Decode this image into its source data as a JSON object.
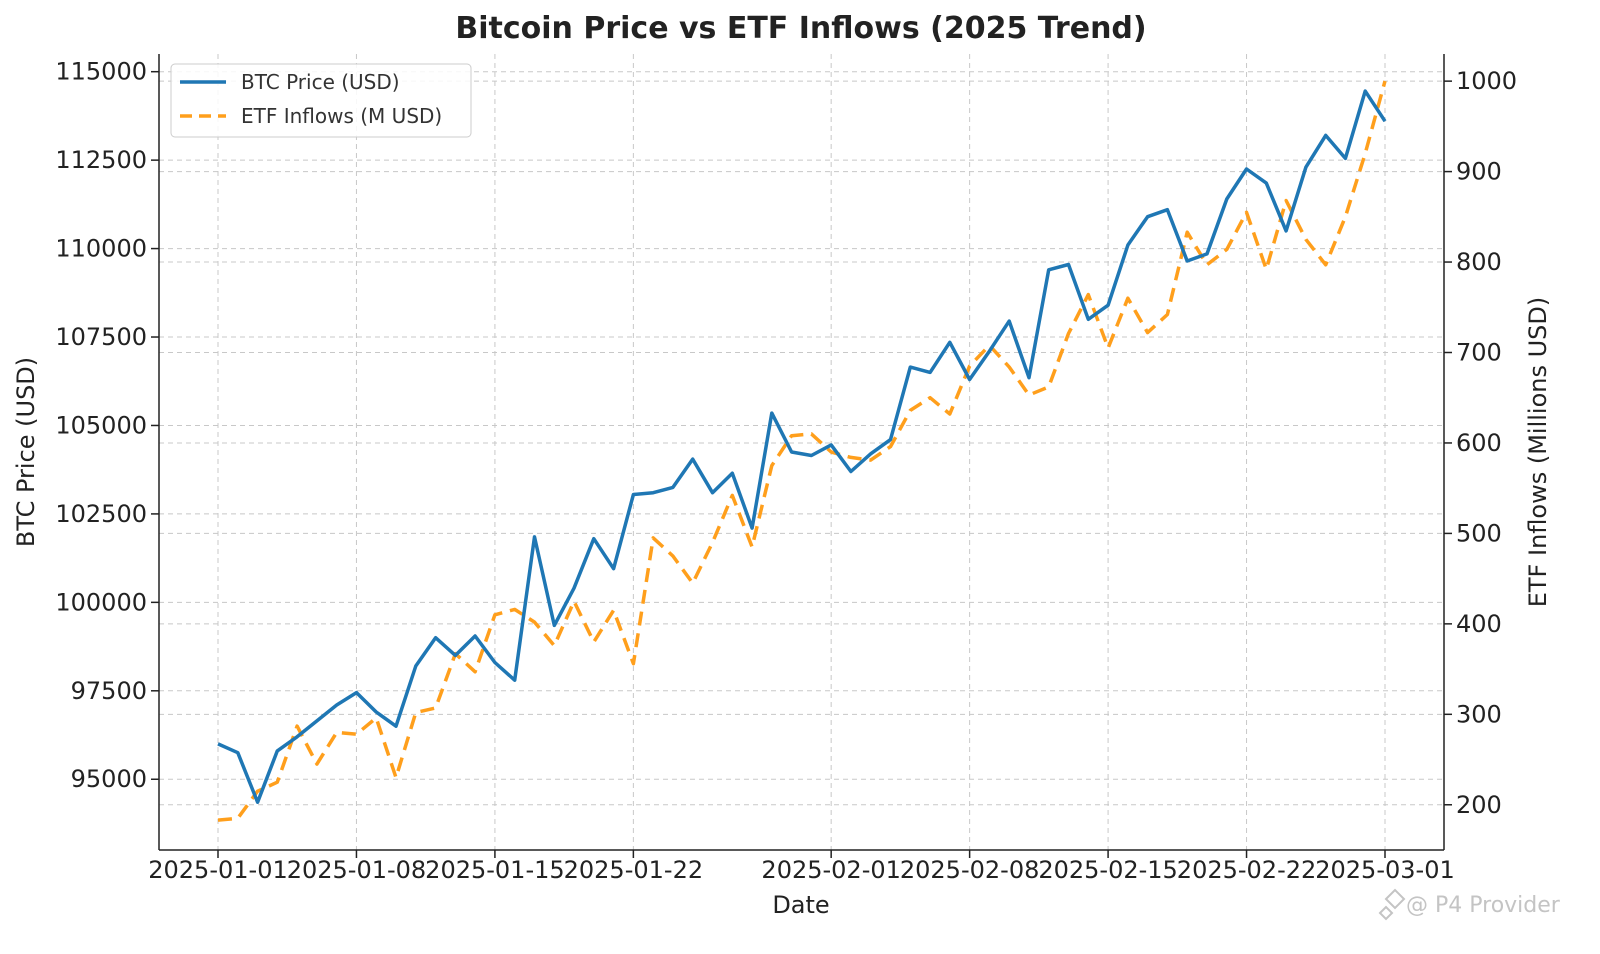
{
  "chart_data": {
    "type": "line",
    "title": "Bitcoin Price vs ETF Inflows (2025 Trend)",
    "xlabel": "Date",
    "ylabel_left": "BTC Price (USD)",
    "ylabel_right": "ETF Inflows (Millions USD)",
    "x_start": "2025-01-01",
    "x_ticks": [
      "2025-01-01",
      "2025-01-08",
      "2025-01-15",
      "2025-01-22",
      "2025-02-01",
      "2025-02-08",
      "2025-02-15",
      "2025-02-22",
      "2025-03-01"
    ],
    "x_tick_labels": [
      "2025-01-01",
      "2025-01-08",
      "2025-01-15",
      "2025-01-22",
      "2025-02-01",
      "2025-02-08",
      "2025-02-15",
      "2025-02-22",
      "2025-03-01"
    ],
    "y_left_ticks": [
      95000,
      97500,
      100000,
      102500,
      105000,
      107500,
      110000,
      112500,
      115000
    ],
    "y_right_ticks": [
      200,
      300,
      400,
      500,
      600,
      700,
      800,
      900,
      1000
    ],
    "ylim_left": [
      93000,
      115500
    ],
    "ylim_right": [
      150,
      1030
    ],
    "grid": true,
    "legend_position": "upper-left",
    "series": [
      {
        "name": "BTC Price (USD)",
        "axis": "left",
        "color": "#1f77b4",
        "style": "solid",
        "x": [
          "2025-01-01",
          "2025-01-02",
          "2025-01-03",
          "2025-01-04",
          "2025-01-05",
          "2025-01-06",
          "2025-01-07",
          "2025-01-08",
          "2025-01-09",
          "2025-01-10",
          "2025-01-11",
          "2025-01-12",
          "2025-01-13",
          "2025-01-14",
          "2025-01-15",
          "2025-01-16",
          "2025-01-17",
          "2025-01-18",
          "2025-01-19",
          "2025-01-20",
          "2025-01-21",
          "2025-01-22",
          "2025-01-23",
          "2025-01-24",
          "2025-01-25",
          "2025-01-26",
          "2025-01-27",
          "2025-01-28",
          "2025-01-29",
          "2025-01-30",
          "2025-01-31",
          "2025-02-01",
          "2025-02-02",
          "2025-02-03",
          "2025-02-04",
          "2025-02-05",
          "2025-02-06",
          "2025-02-07",
          "2025-02-08",
          "2025-02-09",
          "2025-02-10",
          "2025-02-11",
          "2025-02-12",
          "2025-02-13",
          "2025-02-14",
          "2025-02-15",
          "2025-02-16",
          "2025-02-17",
          "2025-02-18",
          "2025-02-19",
          "2025-02-20",
          "2025-02-21",
          "2025-02-22",
          "2025-02-23",
          "2025-02-24",
          "2025-02-25",
          "2025-02-26",
          "2025-02-27",
          "2025-02-28",
          "2025-03-01"
        ],
        "values": [
          96000,
          95750,
          94350,
          95800,
          96200,
          96650,
          97100,
          97450,
          96900,
          96500,
          98200,
          99000,
          98500,
          99050,
          98300,
          97800,
          101850,
          99350,
          100400,
          101800,
          100950,
          103050,
          103100,
          103250,
          104050,
          103100,
          103650,
          102100,
          105350,
          104250,
          104150,
          104450,
          103700,
          104200,
          104600,
          106650,
          106500,
          107350,
          106300,
          107100,
          107950,
          106350,
          109400,
          109550,
          108000,
          108400,
          110100,
          110900,
          111100,
          109650,
          109850,
          111400,
          112250,
          111850,
          110500,
          112300,
          113200,
          112550,
          114450,
          113600
        ]
      },
      {
        "name": "ETF Inflows (M USD)",
        "axis": "right",
        "color": "#ff9f1c",
        "style": "dashed",
        "x": [
          "2025-01-01",
          "2025-01-02",
          "2025-01-03",
          "2025-01-04",
          "2025-01-05",
          "2025-01-06",
          "2025-01-07",
          "2025-01-08",
          "2025-01-09",
          "2025-01-10",
          "2025-01-11",
          "2025-01-12",
          "2025-01-13",
          "2025-01-14",
          "2025-01-15",
          "2025-01-16",
          "2025-01-17",
          "2025-01-18",
          "2025-01-19",
          "2025-01-20",
          "2025-01-21",
          "2025-01-22",
          "2025-01-23",
          "2025-01-24",
          "2025-01-25",
          "2025-01-26",
          "2025-01-27",
          "2025-01-28",
          "2025-01-29",
          "2025-01-30",
          "2025-01-31",
          "2025-02-01",
          "2025-02-02",
          "2025-02-03",
          "2025-02-04",
          "2025-02-05",
          "2025-02-06",
          "2025-02-07",
          "2025-02-08",
          "2025-02-09",
          "2025-02-10",
          "2025-02-11",
          "2025-02-12",
          "2025-02-13",
          "2025-02-14",
          "2025-02-15",
          "2025-02-16",
          "2025-02-17",
          "2025-02-18",
          "2025-02-19",
          "2025-02-20",
          "2025-02-21",
          "2025-02-22",
          "2025-02-23",
          "2025-02-24",
          "2025-02-25",
          "2025-02-26",
          "2025-02-27",
          "2025-02-28",
          "2025-03-01"
        ],
        "values": [
          183,
          185,
          215,
          225,
          287,
          245,
          280,
          278,
          296,
          230,
          302,
          307,
          367,
          347,
          410,
          416,
          402,
          376,
          425,
          380,
          415,
          356,
          495,
          475,
          445,
          490,
          542,
          485,
          575,
          608,
          610,
          590,
          584,
          581,
          596,
          636,
          650,
          632,
          685,
          708,
          684,
          653,
          662,
          721,
          764,
          705,
          760,
          722,
          742,
          833,
          797,
          814,
          855,
          792,
          868,
          825,
          797,
          850,
          920,
          1000
        ]
      }
    ]
  },
  "watermark": {
    "text": "@ P4 Provider"
  }
}
